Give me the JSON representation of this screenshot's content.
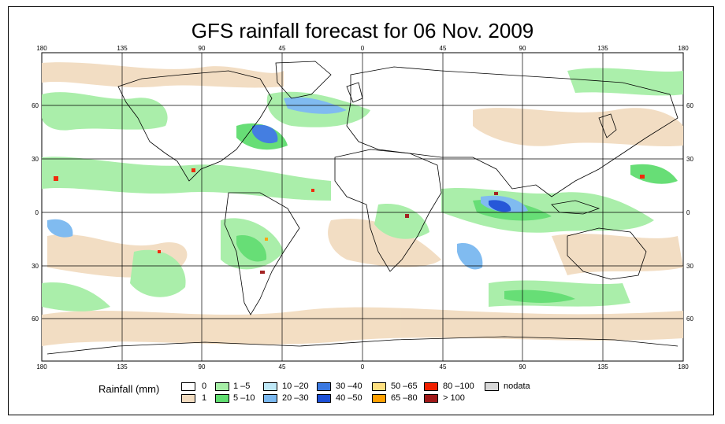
{
  "map": {
    "title": "GFS rainfall forecast for 06 Nov. 2009",
    "lon_ticks": [
      "180",
      "135",
      "90",
      "45",
      "0",
      "45",
      "90",
      "135",
      "180"
    ],
    "lat_ticks": [
      "60",
      "30",
      "0",
      "30",
      "60"
    ]
  },
  "legend": {
    "title": "Rainfall (mm)",
    "items": [
      {
        "label": "0",
        "color": "#ffffff"
      },
      {
        "label": "1",
        "color": "#f2dcc0"
      },
      {
        "label": "1 –5",
        "color": "#a6eea6"
      },
      {
        "label": "5 –10",
        "color": "#5fdd6f"
      },
      {
        "label": "10 –20",
        "color": "#bfe8f7"
      },
      {
        "label": "20 –30",
        "color": "#7ab8f0"
      },
      {
        "label": "30 –40",
        "color": "#3a78e0"
      },
      {
        "label": "40 –50",
        "color": "#1b4fd6"
      },
      {
        "label": "50 –65",
        "color": "#ffe080"
      },
      {
        "label": "65 –80",
        "color": "#ffa000"
      },
      {
        "label": "80 –100",
        "color": "#f02000"
      },
      {
        "label": "> 100",
        "color": "#a01818"
      },
      {
        "label": "nodata",
        "color": "#d8d8d8"
      }
    ]
  }
}
